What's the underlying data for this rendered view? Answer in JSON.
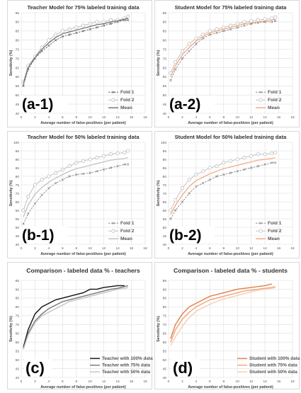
{
  "figure": {
    "colors": {
      "teacher_dark": "#555555",
      "teacher_light": "#b4b4b4",
      "teacher_mean_75": "#6e6e6e",
      "teacher_mean_50": "#bdbdbd",
      "student_fold": "#7c7c7c",
      "student_fold2": "#b9b9b9",
      "student_mean": "#f2a57d",
      "grid": "#dddddd"
    }
  },
  "chart_data": [
    {
      "id": "a1",
      "type": "line",
      "title": "Teacher Model for 75% labeled training data",
      "panel_label": "(a-1)",
      "xlabel": "Average number of false-positives (per patient)",
      "ylabel": "Sensitivity (%)",
      "xlim": [
        0,
        18
      ],
      "ylim": [
        40,
        95
      ],
      "xticks": [
        "0",
        "2",
        "4",
        "6",
        "8",
        "10",
        "12",
        "14",
        "16",
        "18"
      ],
      "yticks": [
        "40",
        "45",
        "50",
        "55",
        "60",
        "65",
        "70",
        "75",
        "80",
        "85",
        "90",
        "95"
      ],
      "grid": true,
      "legend": "bottom-right",
      "series": [
        {
          "name": "Fold 1",
          "style": "dash-x",
          "color": "#555555",
          "x": [
            0.3,
            1,
            2,
            3,
            4,
            5,
            6,
            7,
            8,
            9,
            10,
            11,
            12,
            13,
            14,
            15,
            15.5
          ],
          "y": [
            55,
            64,
            70,
            74,
            77,
            80,
            82,
            83,
            84,
            85,
            86,
            87,
            88,
            89,
            90,
            91,
            91
          ]
        },
        {
          "name": "Fold 2",
          "style": "circle",
          "color": "#b4b4b4",
          "x": [
            0.3,
            1,
            2,
            3,
            4,
            5,
            6,
            7,
            8,
            9,
            10,
            11,
            12,
            13,
            14,
            15,
            15.5
          ],
          "y": [
            57,
            66,
            71,
            76,
            80,
            83,
            85,
            86,
            87,
            88,
            89,
            90,
            90,
            91,
            91,
            92,
            93
          ]
        },
        {
          "name": "Mean",
          "style": "solid",
          "color": "#6e6e6e",
          "x": [
            0.3,
            1,
            2,
            3,
            4,
            5,
            6,
            7,
            8,
            9,
            10,
            11,
            12,
            13,
            14,
            15,
            15.5
          ],
          "y": [
            56,
            65,
            70.5,
            75,
            78.5,
            81.5,
            83.5,
            84.5,
            85.5,
            86.5,
            87.5,
            88.5,
            89,
            90,
            90.5,
            91.5,
            92
          ]
        }
      ]
    },
    {
      "id": "a2",
      "type": "line",
      "title": "Student Model for 75% labeled training data",
      "panel_label": "(a-2)",
      "xlabel": "Average number of false-positives (per patient)",
      "ylabel": "Sensitivity (%)",
      "xlim": [
        0,
        18
      ],
      "ylim": [
        40,
        95
      ],
      "xticks": [
        "0",
        "2",
        "4",
        "6",
        "8",
        "10",
        "12",
        "14",
        "16",
        "18"
      ],
      "yticks": [
        "40",
        "45",
        "50",
        "55",
        "60",
        "65",
        "70",
        "75",
        "80",
        "85",
        "90",
        "95"
      ],
      "grid": true,
      "legend": "bottom-right",
      "series": [
        {
          "name": "Fold 1",
          "style": "dash-x",
          "color": "#7c7c7c",
          "x": [
            0.3,
            1,
            2,
            3,
            4,
            5,
            6,
            7,
            8,
            9,
            10,
            11,
            12,
            13,
            14,
            15,
            15.5
          ],
          "y": [
            58,
            64,
            70,
            74,
            78,
            81,
            83,
            84,
            85,
            86,
            87,
            88,
            89,
            89.5,
            90,
            90,
            90.5
          ]
        },
        {
          "name": "Fold 2",
          "style": "circle",
          "color": "#b9b9b9",
          "x": [
            0.3,
            1,
            2,
            3,
            4,
            5,
            6,
            7,
            8,
            9,
            10,
            11,
            12,
            13,
            14,
            15,
            15.5
          ],
          "y": [
            62,
            68,
            74,
            78,
            81,
            83,
            85,
            86,
            87,
            88,
            89,
            90,
            90.5,
            91,
            91.5,
            92,
            92.5
          ]
        },
        {
          "name": "Mean",
          "style": "solid",
          "color": "#f2a57d",
          "x": [
            0.3,
            1,
            2,
            3,
            4,
            5,
            6,
            7,
            8,
            9,
            10,
            11,
            12,
            13,
            14,
            15,
            15.5
          ],
          "y": [
            60,
            66,
            72,
            76,
            79.5,
            82,
            84,
            85,
            86,
            87,
            88,
            89,
            89.5,
            90,
            90.5,
            91,
            91.5
          ]
        }
      ]
    },
    {
      "id": "b1",
      "type": "line",
      "title": "Teacher Model for 50% labeled training data",
      "panel_label": "(b-1)",
      "xlabel": "Average number of false-positives (per patient)",
      "ylabel": "Sensitivity (%)",
      "xlim": [
        0,
        18
      ],
      "ylim": [
        40,
        100
      ],
      "xticks": [
        "0",
        "2",
        "4",
        "6",
        "8",
        "10",
        "12",
        "14",
        "16",
        "18"
      ],
      "yticks": [
        "40",
        "45",
        "50",
        "55",
        "60",
        "65",
        "70",
        "75",
        "80",
        "85",
        "90",
        "95",
        "100"
      ],
      "grid": true,
      "legend": "bottom-right",
      "series": [
        {
          "name": "Fold 1",
          "style": "dash-x",
          "color": "#7c7c7c",
          "x": [
            0.3,
            1,
            2,
            3,
            4,
            5,
            6,
            7,
            8,
            9,
            10,
            11,
            12,
            13,
            14,
            15,
            15.5
          ],
          "y": [
            52,
            58,
            64,
            69,
            73,
            76,
            78,
            80,
            81,
            81.5,
            82,
            83,
            84,
            85,
            86,
            87,
            87
          ]
        },
        {
          "name": "Fold 2",
          "style": "circle",
          "color": "#b4b4b4",
          "x": [
            0.3,
            1,
            2,
            3,
            4,
            5,
            6,
            7,
            8,
            9,
            10,
            11,
            12,
            13,
            14,
            15,
            15.5
          ],
          "y": [
            60,
            68,
            75,
            78,
            80,
            82,
            84,
            86,
            88,
            89,
            90,
            91,
            92,
            93,
            93.5,
            94,
            95
          ]
        },
        {
          "name": "Mean",
          "style": "solid",
          "color": "#bdbdbd",
          "x": [
            0.3,
            1,
            2,
            3,
            4,
            5,
            6,
            7,
            8,
            9,
            10,
            11,
            12,
            13,
            14,
            15,
            15.5
          ],
          "y": [
            56,
            63,
            69.5,
            73.5,
            76.5,
            79,
            81,
            83,
            84.5,
            85.5,
            86.5,
            87.5,
            88.5,
            89.5,
            90,
            90.5,
            91
          ]
        }
      ]
    },
    {
      "id": "b2",
      "type": "line",
      "title": "Student Model for 50% labeled training data",
      "panel_label": "(b-2)",
      "xlabel": "Average number of false-positives (per patient)",
      "ylabel": "Sensitivity (%)",
      "xlim": [
        0,
        18
      ],
      "ylim": [
        40,
        100
      ],
      "xticks": [
        "0",
        "2",
        "4",
        "6",
        "8",
        "10",
        "12",
        "14",
        "16",
        "18"
      ],
      "yticks": [
        "40",
        "45",
        "50",
        "55",
        "60",
        "65",
        "70",
        "75",
        "80",
        "85",
        "90",
        "95",
        "100"
      ],
      "grid": true,
      "legend": "bottom-right",
      "series": [
        {
          "name": "Fold 1",
          "style": "dash-x",
          "color": "#7c7c7c",
          "x": [
            0.3,
            1,
            2,
            3,
            4,
            5,
            6,
            7,
            8,
            9,
            10,
            11,
            12,
            13,
            14,
            15,
            15.5
          ],
          "y": [
            55,
            60,
            65,
            70,
            74,
            76,
            78,
            80,
            81,
            82,
            83,
            84,
            85,
            86,
            87,
            88,
            88
          ]
        },
        {
          "name": "Fold 2",
          "style": "circle",
          "color": "#b9b9b9",
          "x": [
            0.3,
            1,
            2,
            3,
            4,
            5,
            6,
            7,
            8,
            9,
            10,
            11,
            12,
            13,
            14,
            15,
            15.5
          ],
          "y": [
            60,
            66,
            73,
            78,
            81,
            83,
            85,
            86,
            88,
            89,
            90,
            91,
            92,
            93,
            93,
            93.5,
            94
          ]
        },
        {
          "name": "Mean",
          "style": "solid",
          "color": "#f2a57d",
          "x": [
            0.3,
            1,
            2,
            3,
            4,
            5,
            6,
            7,
            8,
            9,
            10,
            11,
            12,
            13,
            14,
            15,
            15.5
          ],
          "y": [
            57.5,
            63,
            69,
            74,
            77.5,
            79.5,
            81.5,
            83,
            84.5,
            85.5,
            86.5,
            87.5,
            88.5,
            89.5,
            90,
            90.5,
            91
          ]
        }
      ]
    },
    {
      "id": "c",
      "type": "line",
      "title": "Comparison - labeled data % - teachers",
      "panel_label": "(c)",
      "xlabel": "Average number of false-positives (per patient)",
      "ylabel": "Sensitivity (%)",
      "xlim": [
        0,
        18
      ],
      "ylim": [
        40,
        95
      ],
      "xticks": [
        "0",
        "2",
        "4",
        "6",
        "8",
        "10",
        "12",
        "14",
        "16",
        "18"
      ],
      "yticks": [
        "40",
        "45",
        "50",
        "55",
        "60",
        "65",
        "70",
        "75",
        "80",
        "85",
        "90",
        "95"
      ],
      "grid": true,
      "legend": "bottom-right",
      "series": [
        {
          "name": "Teacher with 100% data",
          "style": "solid",
          "color": "#111111",
          "x": [
            0.3,
            1,
            2,
            3,
            4,
            5,
            6,
            7,
            8,
            9,
            10,
            11,
            12,
            13,
            14,
            15
          ],
          "y": [
            57,
            67,
            76,
            80,
            82,
            84,
            85,
            86,
            87,
            88,
            90,
            90,
            91,
            91.5,
            92,
            92
          ]
        },
        {
          "name": "Teacher with 75% data",
          "style": "solid",
          "color": "#777777",
          "x": [
            0.3,
            1,
            2,
            3,
            4,
            5,
            6,
            7,
            8,
            9,
            10,
            11,
            12,
            13,
            14,
            15,
            15.5
          ],
          "y": [
            56,
            65,
            72,
            76,
            79,
            81,
            83,
            84,
            85,
            86,
            87,
            88,
            89,
            90,
            90.5,
            91.5,
            92
          ]
        },
        {
          "name": "Teacher with 50% data",
          "style": "solid",
          "color": "#c4c4c4",
          "x": [
            0.3,
            1,
            2,
            3,
            4,
            5,
            6,
            7,
            8,
            9,
            10,
            11,
            12,
            13,
            14,
            15,
            15.5
          ],
          "y": [
            56,
            64,
            71,
            75,
            77,
            79,
            81,
            83,
            84,
            85,
            86,
            87,
            88,
            89,
            90,
            90.5,
            91
          ]
        }
      ]
    },
    {
      "id": "d",
      "type": "line",
      "title": "Comparison - labeled data % - students",
      "panel_label": "(d)",
      "xlabel": "Average number of false-positives (per patient)",
      "ylabel": "Sensitivity (%)",
      "xlim": [
        0,
        18
      ],
      "ylim": [
        40,
        95
      ],
      "xticks": [
        "0",
        "2",
        "4",
        "6",
        "8",
        "10",
        "12",
        "14",
        "16",
        "18"
      ],
      "yticks": [
        "40",
        "45",
        "50",
        "55",
        "60",
        "65",
        "70",
        "75",
        "80",
        "85",
        "90",
        "95"
      ],
      "grid": true,
      "legend": "bottom-right",
      "series": [
        {
          "name": "Student with 100% data",
          "style": "solid",
          "color": "#e27f45",
          "x": [
            0.3,
            1,
            2,
            3,
            4,
            5,
            6,
            7,
            8,
            9,
            10,
            11,
            12,
            13,
            14,
            15
          ],
          "y": [
            62,
            70,
            76,
            80,
            82,
            84,
            86,
            87,
            88,
            89,
            90,
            90.5,
            91,
            91.5,
            92,
            93
          ]
        },
        {
          "name": "Student with 75% data",
          "style": "solid",
          "color": "#eea57a",
          "x": [
            0.3,
            1,
            2,
            3,
            4,
            5,
            6,
            7,
            8,
            9,
            10,
            11,
            12,
            13,
            14,
            15,
            15.5
          ],
          "y": [
            60,
            67,
            73,
            77,
            80,
            82,
            84,
            85,
            86,
            87,
            88,
            89,
            89.5,
            90,
            90.5,
            91,
            91.5
          ]
        },
        {
          "name": "Student with 50% data",
          "style": "solid",
          "color": "#f6cdb2",
          "x": [
            0.3,
            1,
            2,
            3,
            4,
            5,
            6,
            7,
            8,
            9,
            10,
            11,
            12,
            13,
            14,
            15,
            15.5
          ],
          "y": [
            58,
            63,
            69,
            74,
            77.5,
            79.5,
            81.5,
            83,
            84.5,
            85.5,
            86.5,
            87.5,
            88.5,
            89.5,
            90,
            90.5,
            91
          ]
        }
      ]
    }
  ]
}
